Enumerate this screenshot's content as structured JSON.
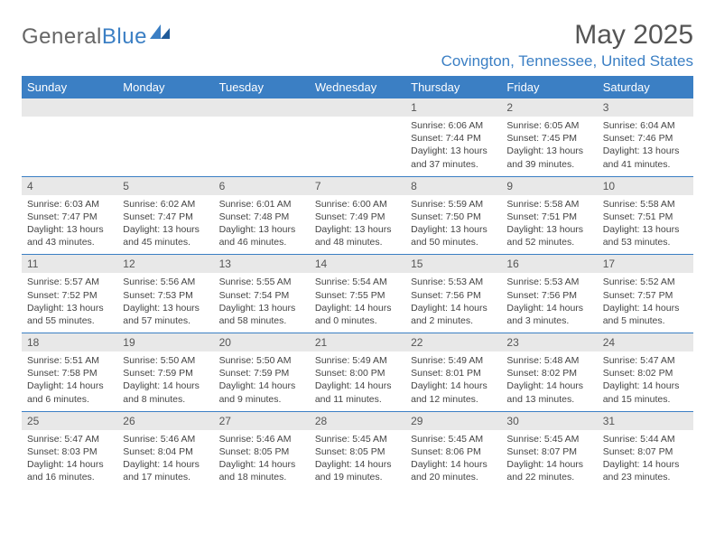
{
  "brand": {
    "part1": "General",
    "part2": "Blue"
  },
  "title": "May 2025",
  "location": "Covington, Tennessee, United States",
  "colors": {
    "accent": "#3b7fc4",
    "header_text": "#555555",
    "body_text": "#444444",
    "daynum_bg": "#e8e8e8",
    "background": "#ffffff"
  },
  "weekdays": [
    "Sunday",
    "Monday",
    "Tuesday",
    "Wednesday",
    "Thursday",
    "Friday",
    "Saturday"
  ],
  "weeks": [
    [
      null,
      null,
      null,
      null,
      {
        "n": "1",
        "sr": "6:06 AM",
        "ss": "7:44 PM",
        "dl": "13 hours and 37 minutes."
      },
      {
        "n": "2",
        "sr": "6:05 AM",
        "ss": "7:45 PM",
        "dl": "13 hours and 39 minutes."
      },
      {
        "n": "3",
        "sr": "6:04 AM",
        "ss": "7:46 PM",
        "dl": "13 hours and 41 minutes."
      }
    ],
    [
      {
        "n": "4",
        "sr": "6:03 AM",
        "ss": "7:47 PM",
        "dl": "13 hours and 43 minutes."
      },
      {
        "n": "5",
        "sr": "6:02 AM",
        "ss": "7:47 PM",
        "dl": "13 hours and 45 minutes."
      },
      {
        "n": "6",
        "sr": "6:01 AM",
        "ss": "7:48 PM",
        "dl": "13 hours and 46 minutes."
      },
      {
        "n": "7",
        "sr": "6:00 AM",
        "ss": "7:49 PM",
        "dl": "13 hours and 48 minutes."
      },
      {
        "n": "8",
        "sr": "5:59 AM",
        "ss": "7:50 PM",
        "dl": "13 hours and 50 minutes."
      },
      {
        "n": "9",
        "sr": "5:58 AM",
        "ss": "7:51 PM",
        "dl": "13 hours and 52 minutes."
      },
      {
        "n": "10",
        "sr": "5:58 AM",
        "ss": "7:51 PM",
        "dl": "13 hours and 53 minutes."
      }
    ],
    [
      {
        "n": "11",
        "sr": "5:57 AM",
        "ss": "7:52 PM",
        "dl": "13 hours and 55 minutes."
      },
      {
        "n": "12",
        "sr": "5:56 AM",
        "ss": "7:53 PM",
        "dl": "13 hours and 57 minutes."
      },
      {
        "n": "13",
        "sr": "5:55 AM",
        "ss": "7:54 PM",
        "dl": "13 hours and 58 minutes."
      },
      {
        "n": "14",
        "sr": "5:54 AM",
        "ss": "7:55 PM",
        "dl": "14 hours and 0 minutes."
      },
      {
        "n": "15",
        "sr": "5:53 AM",
        "ss": "7:56 PM",
        "dl": "14 hours and 2 minutes."
      },
      {
        "n": "16",
        "sr": "5:53 AM",
        "ss": "7:56 PM",
        "dl": "14 hours and 3 minutes."
      },
      {
        "n": "17",
        "sr": "5:52 AM",
        "ss": "7:57 PM",
        "dl": "14 hours and 5 minutes."
      }
    ],
    [
      {
        "n": "18",
        "sr": "5:51 AM",
        "ss": "7:58 PM",
        "dl": "14 hours and 6 minutes."
      },
      {
        "n": "19",
        "sr": "5:50 AM",
        "ss": "7:59 PM",
        "dl": "14 hours and 8 minutes."
      },
      {
        "n": "20",
        "sr": "5:50 AM",
        "ss": "7:59 PM",
        "dl": "14 hours and 9 minutes."
      },
      {
        "n": "21",
        "sr": "5:49 AM",
        "ss": "8:00 PM",
        "dl": "14 hours and 11 minutes."
      },
      {
        "n": "22",
        "sr": "5:49 AM",
        "ss": "8:01 PM",
        "dl": "14 hours and 12 minutes."
      },
      {
        "n": "23",
        "sr": "5:48 AM",
        "ss": "8:02 PM",
        "dl": "14 hours and 13 minutes."
      },
      {
        "n": "24",
        "sr": "5:47 AM",
        "ss": "8:02 PM",
        "dl": "14 hours and 15 minutes."
      }
    ],
    [
      {
        "n": "25",
        "sr": "5:47 AM",
        "ss": "8:03 PM",
        "dl": "14 hours and 16 minutes."
      },
      {
        "n": "26",
        "sr": "5:46 AM",
        "ss": "8:04 PM",
        "dl": "14 hours and 17 minutes."
      },
      {
        "n": "27",
        "sr": "5:46 AM",
        "ss": "8:05 PM",
        "dl": "14 hours and 18 minutes."
      },
      {
        "n": "28",
        "sr": "5:45 AM",
        "ss": "8:05 PM",
        "dl": "14 hours and 19 minutes."
      },
      {
        "n": "29",
        "sr": "5:45 AM",
        "ss": "8:06 PM",
        "dl": "14 hours and 20 minutes."
      },
      {
        "n": "30",
        "sr": "5:45 AM",
        "ss": "8:07 PM",
        "dl": "14 hours and 22 minutes."
      },
      {
        "n": "31",
        "sr": "5:44 AM",
        "ss": "8:07 PM",
        "dl": "14 hours and 23 minutes."
      }
    ]
  ],
  "labels": {
    "sunrise": "Sunrise:",
    "sunset": "Sunset:",
    "daylight": "Daylight:"
  }
}
